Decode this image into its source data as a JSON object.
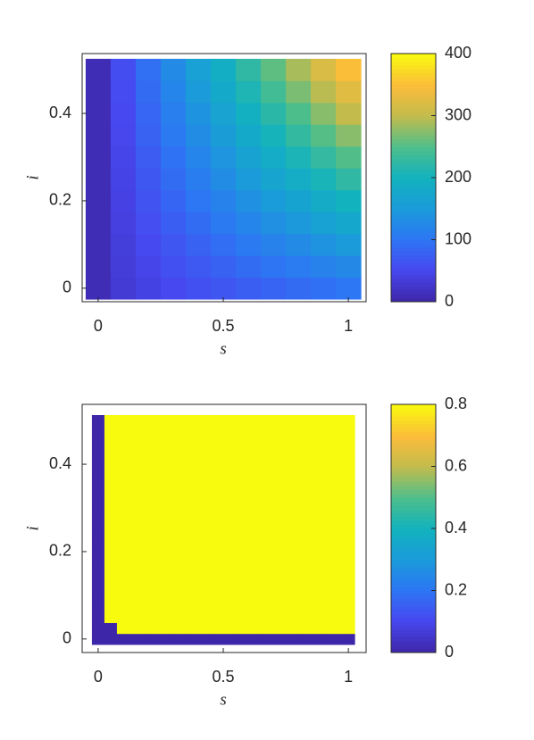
{
  "chart_data": [
    {
      "type": "heatmap",
      "colormap": "parula",
      "xlabel": "s",
      "ylabel": "i",
      "x": [
        0,
        0.1,
        0.2,
        0.3,
        0.4,
        0.5,
        0.6,
        0.7,
        0.8,
        0.9,
        1
      ],
      "y": [
        0,
        0.05,
        0.1,
        0.15,
        0.2,
        0.25,
        0.3,
        0.35,
        0.4,
        0.45,
        0.5
      ],
      "values": [
        [
          10,
          32,
          43,
          52,
          60,
          67,
          75,
          81,
          88,
          94,
          100
        ],
        [
          10,
          35,
          48,
          60,
          70,
          80,
          90,
          99,
          108,
          117,
          125
        ],
        [
          10,
          37,
          53,
          67,
          80,
          92,
          105,
          116,
          128,
          139,
          150
        ],
        [
          10,
          40,
          58,
          75,
          90,
          105,
          120,
          134,
          148,
          162,
          175
        ],
        [
          10,
          42,
          63,
          82,
          100,
          117,
          135,
          151,
          168,
          184,
          200
        ],
        [
          10,
          45,
          68,
          90,
          110,
          130,
          150,
          169,
          188,
          206,
          225
        ],
        [
          10,
          47,
          73,
          97,
          120,
          142,
          165,
          186,
          208,
          229,
          250
        ],
        [
          10,
          50,
          78,
          105,
          130,
          155,
          180,
          204,
          228,
          252,
          275
        ],
        [
          10,
          52,
          83,
          112,
          140,
          167,
          195,
          221,
          248,
          274,
          300
        ],
        [
          10,
          55,
          88,
          120,
          150,
          180,
          210,
          239,
          268,
          296,
          325
        ],
        [
          10,
          57,
          93,
          127,
          160,
          192,
          225,
          256,
          288,
          319,
          350
        ]
      ],
      "xlim": [
        -0.064,
        1.071
      ],
      "ylim": [
        -0.031,
        0.537
      ],
      "xticks": [
        0,
        0.5,
        1
      ],
      "yticks": [
        0,
        0.2,
        0.4
      ],
      "clim": [
        0,
        400
      ],
      "cticks": [
        0,
        100,
        200,
        300,
        400
      ]
    },
    {
      "type": "heatmap",
      "colormap": "parula",
      "xlabel": "s",
      "ylabel": "i",
      "x": [
        0,
        0.05,
        0.1,
        0.15,
        0.2,
        0.25,
        0.3,
        0.35,
        0.4,
        0.45,
        0.5,
        0.55,
        0.6,
        0.65,
        0.7,
        0.75,
        0.8,
        0.85,
        0.9,
        0.95,
        1
      ],
      "y": [
        0,
        0.025,
        0.05,
        0.075,
        0.1,
        0.125,
        0.15,
        0.175,
        0.2,
        0.225,
        0.25,
        0.275,
        0.3,
        0.325,
        0.35,
        0.375,
        0.4,
        0.425,
        0.45,
        0.475,
        0.5
      ],
      "values": [
        [
          0,
          0,
          0,
          0,
          0,
          0,
          0,
          0,
          0,
          0,
          0,
          0,
          0,
          0,
          0,
          0,
          0,
          0,
          0,
          0,
          0
        ],
        [
          0,
          0,
          0.8,
          0.8,
          0.8,
          0.8,
          0.8,
          0.8,
          0.8,
          0.8,
          0.8,
          0.8,
          0.8,
          0.8,
          0.8,
          0.8,
          0.8,
          0.8,
          0.8,
          0.8,
          0.8
        ],
        [
          0,
          0.8,
          0.8,
          0.8,
          0.8,
          0.8,
          0.8,
          0.8,
          0.8,
          0.8,
          0.8,
          0.8,
          0.8,
          0.8,
          0.8,
          0.8,
          0.8,
          0.8,
          0.8,
          0.8,
          0.8
        ],
        [
          0,
          0.8,
          0.8,
          0.8,
          0.8,
          0.8,
          0.8,
          0.8,
          0.8,
          0.8,
          0.8,
          0.8,
          0.8,
          0.8,
          0.8,
          0.8,
          0.8,
          0.8,
          0.8,
          0.8,
          0.8
        ],
        [
          0,
          0.8,
          0.8,
          0.8,
          0.8,
          0.8,
          0.8,
          0.8,
          0.8,
          0.8,
          0.8,
          0.8,
          0.8,
          0.8,
          0.8,
          0.8,
          0.8,
          0.8,
          0.8,
          0.8,
          0.8
        ],
        [
          0,
          0.8,
          0.8,
          0.8,
          0.8,
          0.8,
          0.8,
          0.8,
          0.8,
          0.8,
          0.8,
          0.8,
          0.8,
          0.8,
          0.8,
          0.8,
          0.8,
          0.8,
          0.8,
          0.8,
          0.8
        ],
        [
          0,
          0.8,
          0.8,
          0.8,
          0.8,
          0.8,
          0.8,
          0.8,
          0.8,
          0.8,
          0.8,
          0.8,
          0.8,
          0.8,
          0.8,
          0.8,
          0.8,
          0.8,
          0.8,
          0.8,
          0.8
        ],
        [
          0,
          0.8,
          0.8,
          0.8,
          0.8,
          0.8,
          0.8,
          0.8,
          0.8,
          0.8,
          0.8,
          0.8,
          0.8,
          0.8,
          0.8,
          0.8,
          0.8,
          0.8,
          0.8,
          0.8,
          0.8
        ],
        [
          0,
          0.8,
          0.8,
          0.8,
          0.8,
          0.8,
          0.8,
          0.8,
          0.8,
          0.8,
          0.8,
          0.8,
          0.8,
          0.8,
          0.8,
          0.8,
          0.8,
          0.8,
          0.8,
          0.8,
          0.8
        ],
        [
          0,
          0.8,
          0.8,
          0.8,
          0.8,
          0.8,
          0.8,
          0.8,
          0.8,
          0.8,
          0.8,
          0.8,
          0.8,
          0.8,
          0.8,
          0.8,
          0.8,
          0.8,
          0.8,
          0.8,
          0.8
        ],
        [
          0,
          0.8,
          0.8,
          0.8,
          0.8,
          0.8,
          0.8,
          0.8,
          0.8,
          0.8,
          0.8,
          0.8,
          0.8,
          0.8,
          0.8,
          0.8,
          0.8,
          0.8,
          0.8,
          0.8,
          0.8
        ],
        [
          0,
          0.8,
          0.8,
          0.8,
          0.8,
          0.8,
          0.8,
          0.8,
          0.8,
          0.8,
          0.8,
          0.8,
          0.8,
          0.8,
          0.8,
          0.8,
          0.8,
          0.8,
          0.8,
          0.8,
          0.8
        ],
        [
          0,
          0.8,
          0.8,
          0.8,
          0.8,
          0.8,
          0.8,
          0.8,
          0.8,
          0.8,
          0.8,
          0.8,
          0.8,
          0.8,
          0.8,
          0.8,
          0.8,
          0.8,
          0.8,
          0.8,
          0.8
        ],
        [
          0,
          0.8,
          0.8,
          0.8,
          0.8,
          0.8,
          0.8,
          0.8,
          0.8,
          0.8,
          0.8,
          0.8,
          0.8,
          0.8,
          0.8,
          0.8,
          0.8,
          0.8,
          0.8,
          0.8,
          0.8
        ],
        [
          0,
          0.8,
          0.8,
          0.8,
          0.8,
          0.8,
          0.8,
          0.8,
          0.8,
          0.8,
          0.8,
          0.8,
          0.8,
          0.8,
          0.8,
          0.8,
          0.8,
          0.8,
          0.8,
          0.8,
          0.8
        ],
        [
          0,
          0.8,
          0.8,
          0.8,
          0.8,
          0.8,
          0.8,
          0.8,
          0.8,
          0.8,
          0.8,
          0.8,
          0.8,
          0.8,
          0.8,
          0.8,
          0.8,
          0.8,
          0.8,
          0.8,
          0.8
        ],
        [
          0,
          0.8,
          0.8,
          0.8,
          0.8,
          0.8,
          0.8,
          0.8,
          0.8,
          0.8,
          0.8,
          0.8,
          0.8,
          0.8,
          0.8,
          0.8,
          0.8,
          0.8,
          0.8,
          0.8,
          0.8
        ],
        [
          0,
          0.8,
          0.8,
          0.8,
          0.8,
          0.8,
          0.8,
          0.8,
          0.8,
          0.8,
          0.8,
          0.8,
          0.8,
          0.8,
          0.8,
          0.8,
          0.8,
          0.8,
          0.8,
          0.8,
          0.8
        ],
        [
          0,
          0.8,
          0.8,
          0.8,
          0.8,
          0.8,
          0.8,
          0.8,
          0.8,
          0.8,
          0.8,
          0.8,
          0.8,
          0.8,
          0.8,
          0.8,
          0.8,
          0.8,
          0.8,
          0.8,
          0.8
        ],
        [
          0,
          0.8,
          0.8,
          0.8,
          0.8,
          0.8,
          0.8,
          0.8,
          0.8,
          0.8,
          0.8,
          0.8,
          0.8,
          0.8,
          0.8,
          0.8,
          0.8,
          0.8,
          0.8,
          0.8,
          0.8
        ],
        [
          0,
          0.8,
          0.8,
          0.8,
          0.8,
          0.8,
          0.8,
          0.8,
          0.8,
          0.8,
          0.8,
          0.8,
          0.8,
          0.8,
          0.8,
          0.8,
          0.8,
          0.8,
          0.8,
          0.8,
          0.8
        ]
      ],
      "xlim": [
        -0.064,
        1.071
      ],
      "ylim": [
        -0.031,
        0.537
      ],
      "xticks": [
        0,
        0.5,
        1
      ],
      "yticks": [
        0,
        0.2,
        0.4
      ],
      "clim": [
        0,
        0.8
      ],
      "cticks": [
        0,
        0.2,
        0.4,
        0.6,
        0.8
      ]
    }
  ]
}
